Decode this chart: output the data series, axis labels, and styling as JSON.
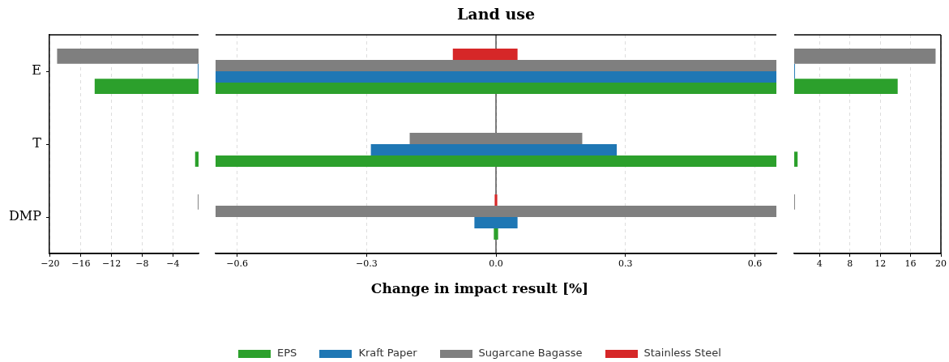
{
  "chart_data": [
    {
      "type": "bar",
      "orientation": "horizontal",
      "categories": [
        "E",
        "T",
        "DMP"
      ],
      "series": [
        {
          "color": "#2ca02c",
          "values": [
            -14.2,
            -1.1,
            null
          ]
        },
        {
          "color": "#1f77b4",
          "values": [
            -0.75,
            null,
            null
          ]
        },
        {
          "color": "#7f7f7f",
          "values": [
            -19.1,
            null,
            -0.75
          ]
        }
      ],
      "xlim": [
        -20.1,
        -0.65
      ],
      "xticks": [
        {
          "value": -20,
          "label": "−20"
        },
        {
          "value": -16,
          "label": "−16"
        },
        {
          "value": -12,
          "label": "−12"
        },
        {
          "value": -8,
          "label": "−8"
        },
        {
          "value": -4,
          "label": "−4"
        }
      ],
      "grid": "x"
    },
    {
      "type": "bar",
      "orientation": "horizontal",
      "title": "Land use",
      "xlabel": "Change in impact result [%]",
      "categories": [
        null,
        null,
        null
      ],
      "series": [
        {
          "name": "EPS",
          "color": "#2ca02c",
          "base": [
            -14.2,
            -1.1,
            -0.005
          ],
          "values": [
            28.5,
            2.2,
            0.01
          ]
        },
        {
          "name": "Kraft Paper",
          "color": "#1f77b4",
          "base": [
            -0.75,
            -0.29,
            -0.05
          ],
          "values": [
            1.5,
            0.57,
            0.1
          ]
        },
        {
          "name": "Sugarcane Bagasse",
          "color": "#7f7f7f",
          "base": [
            -19.1,
            -0.2,
            -0.75
          ],
          "values": [
            38.4,
            0.4,
            1.5
          ]
        },
        {
          "name": "Stainless Steel",
          "color": "#d62728",
          "base": [
            -0.1,
            null,
            -0.003
          ],
          "values": [
            0.15,
            null,
            0.006
          ]
        }
      ],
      "xlim": [
        -0.65,
        0.65
      ],
      "xticks": [
        {
          "value": -0.6,
          "label": "−0.6"
        },
        {
          "value": -0.3,
          "label": "−0.3"
        },
        {
          "value": 0,
          "label": "0.0"
        },
        0.3,
        0.6
      ],
      "grid": "x",
      "tick_labels": "x",
      "legend": "bottom",
      "ref_lines": [
        {
          "axis": "x",
          "value": 0,
          "color": "#000000"
        }
      ]
    },
    {
      "type": "bar",
      "orientation": "horizontal",
      "categories": [
        null,
        null,
        null
      ],
      "series": [
        {
          "color": "#2ca02c",
          "values": [
            14.3,
            1.1,
            null
          ]
        },
        {
          "color": "#1f77b4",
          "values": [
            0.75,
            null,
            null
          ]
        },
        {
          "color": "#7f7f7f",
          "values": [
            19.3,
            null,
            0.75
          ]
        }
      ],
      "xlim": [
        0.65,
        20
      ],
      "xticks": [
        4,
        8,
        12,
        16,
        20
      ],
      "grid": "x",
      "tick_labels": "x"
    }
  ]
}
